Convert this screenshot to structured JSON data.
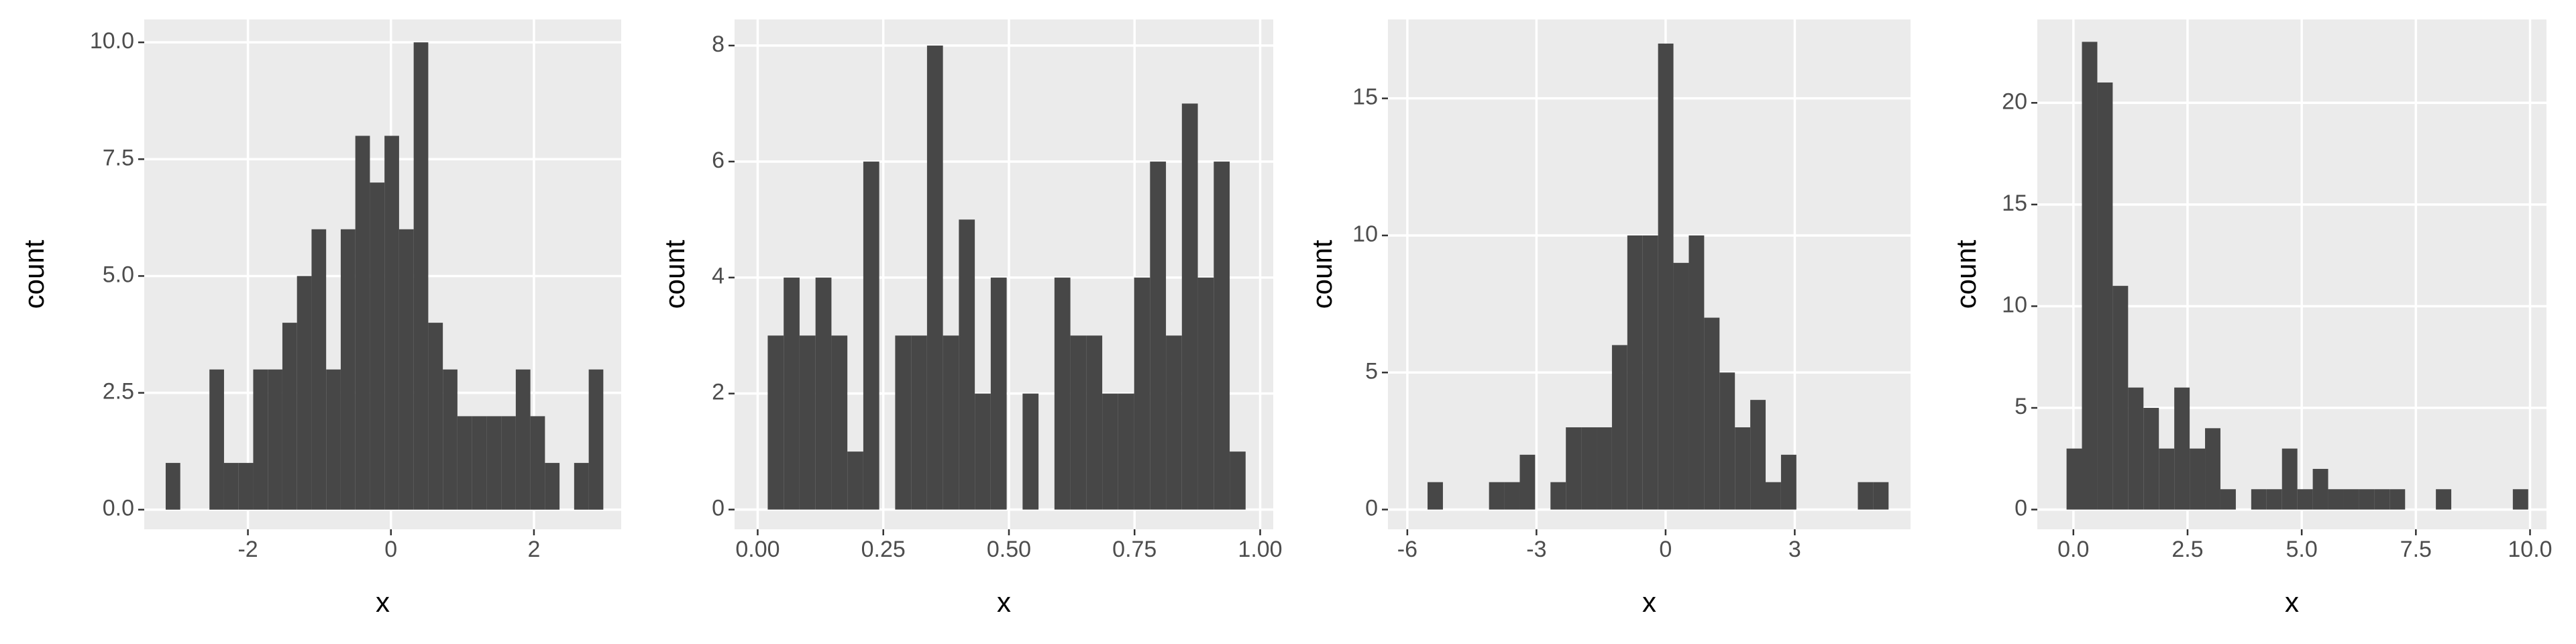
{
  "chart_data": [
    {
      "type": "histogram",
      "xlabel": "x",
      "ylabel": "count",
      "color": "#474747",
      "background": "#ebebeb",
      "grid": true,
      "bins": [
        -3.15,
        -2.946,
        -2.742,
        -2.538,
        -2.334,
        -2.13,
        -1.926,
        -1.722,
        -1.518,
        -1.314,
        -1.11,
        -0.906,
        -0.702,
        -0.498,
        -0.294,
        -0.09,
        0.114,
        0.318,
        0.522,
        0.726,
        0.93,
        1.134,
        1.338,
        1.542,
        1.746,
        1.95,
        2.154,
        2.358,
        2.562,
        2.766,
        2.97
      ],
      "values": [
        1,
        0,
        0,
        3,
        1,
        1,
        3,
        3,
        4,
        5,
        6,
        3,
        6,
        8,
        7,
        8,
        6,
        10,
        4,
        3,
        2,
        2,
        2,
        2,
        3,
        2,
        1,
        0,
        1,
        3
      ],
      "xlim": [
        -3.45,
        3.22
      ],
      "ylim": [
        -0.42,
        10.49
      ],
      "xticks": [
        -2,
        0,
        2
      ],
      "yticks": [
        {
          "value": 0,
          "label": "0.0"
        },
        2.5,
        {
          "value": 5,
          "label": "5.0"
        },
        7.5,
        {
          "value": 10,
          "label": "10.0"
        }
      ]
    },
    {
      "type": "histogram",
      "xlabel": "x",
      "ylabel": "count",
      "color": "#474747",
      "background": "#ebebeb",
      "grid": true,
      "bins": [
        0.02,
        0.0517,
        0.0834,
        0.1151,
        0.1468,
        0.1785,
        0.2102,
        0.2419,
        0.2736,
        0.3053,
        0.337,
        0.3687,
        0.4004,
        0.4321,
        0.4638,
        0.4955,
        0.5272,
        0.5589,
        0.5906,
        0.6223,
        0.654,
        0.6857,
        0.7174,
        0.7491,
        0.7808,
        0.8125,
        0.8442,
        0.8759,
        0.9076,
        0.9393,
        0.971
      ],
      "values": [
        3,
        4,
        3,
        4,
        3,
        1,
        6,
        0,
        3,
        3,
        8,
        3,
        5,
        2,
        4,
        0,
        2,
        0,
        4,
        3,
        3,
        2,
        2,
        4,
        6,
        3,
        7,
        4,
        6,
        1
      ],
      "xlim": [
        -0.046,
        1.026
      ],
      "ylim": [
        -0.34,
        8.45
      ],
      "xticks": [
        {
          "value": 0,
          "label": "0.00"
        },
        0.25,
        {
          "value": 0.5,
          "label": "0.50"
        },
        0.75,
        {
          "value": 1,
          "label": "1.00"
        }
      ],
      "yticks": [
        0,
        2,
        4,
        6,
        8
      ]
    },
    {
      "type": "histogram",
      "xlabel": "x",
      "ylabel": "count",
      "color": "#474747",
      "background": "#ebebeb",
      "grid": true,
      "bins": [
        -5.53,
        -5.173,
        -4.816,
        -4.459,
        -4.102,
        -3.745,
        -3.388,
        -3.031,
        -2.674,
        -2.317,
        -1.96,
        -1.603,
        -1.246,
        -0.889,
        -0.532,
        -0.175,
        0.182,
        0.539,
        0.896,
        1.253,
        1.61,
        1.967,
        2.324,
        2.681,
        3.038,
        3.395,
        3.752,
        4.109,
        4.466,
        4.823,
        5.18
      ],
      "values": [
        1,
        0,
        0,
        0,
        1,
        1,
        2,
        0,
        1,
        3,
        3,
        3,
        6,
        10,
        10,
        17,
        9,
        10,
        7,
        5,
        3,
        4,
        1,
        2,
        0,
        0,
        0,
        0,
        1,
        1
      ],
      "xlim": [
        -6.45,
        5.69
      ],
      "ylim": [
        -0.72,
        17.88
      ],
      "xticks": [
        -6,
        -3,
        0,
        3
      ],
      "yticks": [
        0,
        5,
        10,
        15
      ]
    },
    {
      "type": "histogram",
      "xlabel": "x",
      "ylabel": "count",
      "color": "#474747",
      "background": "#ebebeb",
      "grid": true,
      "bins": [
        -0.15,
        0.187,
        0.524,
        0.861,
        1.198,
        1.535,
        1.872,
        2.209,
        2.546,
        2.883,
        3.22,
        3.557,
        3.894,
        4.231,
        4.568,
        4.905,
        5.242,
        5.579,
        5.916,
        6.253,
        6.59,
        6.927,
        7.264,
        7.601,
        7.938,
        8.275,
        8.612,
        8.949,
        9.286,
        9.623,
        9.96
      ],
      "values": [
        3,
        23,
        21,
        11,
        6,
        5,
        3,
        6,
        3,
        4,
        1,
        0,
        1,
        1,
        3,
        1,
        2,
        1,
        1,
        1,
        1,
        1,
        0,
        0,
        1,
        0,
        0,
        0,
        0,
        1
      ],
      "xlim": [
        -0.79,
        10.36
      ],
      "ylim": [
        -0.97,
        24.1
      ],
      "xticks": [
        {
          "value": 0,
          "label": "0.0"
        },
        2.5,
        {
          "value": 5,
          "label": "5.0"
        },
        7.5,
        {
          "value": 10,
          "label": "10.0"
        }
      ],
      "yticks": [
        0,
        5,
        10,
        15,
        20
      ]
    }
  ]
}
